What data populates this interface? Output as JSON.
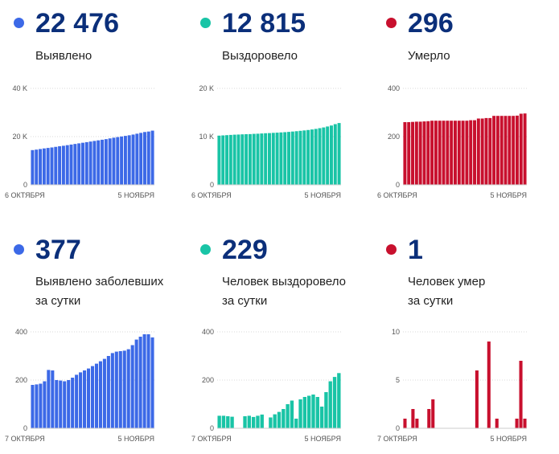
{
  "colors": {
    "blue": "#3c69e7",
    "teal": "#19c4a6",
    "red": "#c8102e",
    "number": "#0b2f7a"
  },
  "panels": [
    {
      "number": "22 476",
      "label_lines": [
        "Выявлено"
      ],
      "color": "#3c69e7",
      "chart_data": {
        "type": "bar",
        "yticks": [
          {
            "v": 0,
            "t": "0"
          },
          {
            "v": 20000,
            "t": "20 K"
          },
          {
            "v": 40000,
            "t": "40 K"
          }
        ],
        "ylim": [
          0,
          40000
        ],
        "x_start": "6 ОКТЯБРЯ",
        "x_end": "5 НОЯБРЯ",
        "values": [
          14400,
          14600,
          14850,
          15100,
          15300,
          15500,
          15750,
          16000,
          16200,
          16450,
          16700,
          16950,
          17200,
          17450,
          17700,
          17950,
          18200,
          18450,
          18700,
          18950,
          19250,
          19550,
          19800,
          20050,
          20300,
          20550,
          20850,
          21200,
          21550,
          21900,
          22100,
          22476
        ]
      }
    },
    {
      "number": "12 815",
      "label_lines": [
        "Выздоровело"
      ],
      "color": "#19c4a6",
      "chart_data": {
        "type": "bar",
        "yticks": [
          {
            "v": 0,
            "t": "0"
          },
          {
            "v": 10000,
            "t": "10 K"
          },
          {
            "v": 20000,
            "t": "20 K"
          }
        ],
        "ylim": [
          0,
          20000
        ],
        "x_start": "6 ОКТЯБРЯ",
        "x_end": "5 НОЯБРЯ",
        "values": [
          10200,
          10250,
          10300,
          10350,
          10400,
          10430,
          10470,
          10500,
          10520,
          10570,
          10600,
          10650,
          10700,
          10730,
          10780,
          10820,
          10870,
          10920,
          10980,
          11050,
          11120,
          11200,
          11280,
          11370,
          11480,
          11600,
          11750,
          11900,
          12100,
          12300,
          12586,
          12815
        ]
      }
    },
    {
      "number": "296",
      "label_lines": [
        "Умерло"
      ],
      "color": "#c8102e",
      "chart_data": {
        "type": "bar",
        "yticks": [
          {
            "v": 0,
            "t": "0"
          },
          {
            "v": 200,
            "t": "200"
          },
          {
            "v": 400,
            "t": "400"
          }
        ],
        "ylim": [
          0,
          400
        ],
        "x_start": "6 ОКТЯБРЯ",
        "x_end": "5 НОЯБРЯ",
        "values": [
          260,
          260,
          261,
          262,
          262,
          263,
          264,
          266,
          266,
          266,
          266,
          266,
          266,
          266,
          266,
          266,
          266,
          268,
          268,
          275,
          275,
          277,
          277,
          286,
          286,
          286,
          286,
          286,
          286,
          287,
          295,
          296
        ]
      }
    },
    {
      "number": "377",
      "label_lines": [
        "Выявлено заболевших",
        "за сутки"
      ],
      "color": "#3c69e7",
      "chart_data": {
        "type": "bar",
        "yticks": [
          {
            "v": 0,
            "t": "0"
          },
          {
            "v": 200,
            "t": "200"
          },
          {
            "v": 400,
            "t": "400"
          }
        ],
        "ylim": [
          0,
          400
        ],
        "x_start": "7 ОКТЯБРЯ",
        "x_end": "5 НОЯБРЯ",
        "values": [
          180,
          182,
          185,
          195,
          242,
          240,
          200,
          198,
          195,
          200,
          210,
          222,
          232,
          240,
          248,
          258,
          268,
          278,
          288,
          300,
          312,
          318,
          320,
          322,
          328,
          345,
          368,
          380,
          390,
          390,
          377
        ]
      }
    },
    {
      "number": "229",
      "label_lines": [
        "Человек выздоровело",
        "за сутки"
      ],
      "color": "#19c4a6",
      "chart_data": {
        "type": "bar",
        "yticks": [
          {
            "v": 0,
            "t": "0"
          },
          {
            "v": 200,
            "t": "200"
          },
          {
            "v": 400,
            "t": "400"
          }
        ],
        "ylim": [
          0,
          400
        ],
        "x_start": "7 ОКТЯБРЯ",
        "x_end": "5 НОЯБРЯ",
        "values": [
          52,
          52,
          50,
          48,
          0,
          0,
          50,
          52,
          47,
          52,
          57,
          0,
          45,
          58,
          68,
          80,
          100,
          115,
          40,
          120,
          130,
          135,
          140,
          130,
          90,
          150,
          195,
          213,
          229
        ]
      }
    },
    {
      "number": "1",
      "label_lines": [
        "Человек умер",
        "за сутки"
      ],
      "color": "#c8102e",
      "chart_data": {
        "type": "bar",
        "yticks": [
          {
            "v": 0,
            "t": "0"
          },
          {
            "v": 5,
            "t": "5"
          },
          {
            "v": 10,
            "t": "10"
          }
        ],
        "ylim": [
          0,
          10
        ],
        "x_start": "7 ОКТЯБРЯ",
        "x_end": "5 НОЯБРЯ",
        "values": [
          1,
          0,
          2,
          1,
          0,
          0,
          2,
          3,
          0,
          0,
          0,
          0,
          0,
          0,
          0,
          0,
          0,
          0,
          6,
          0,
          0,
          9,
          0,
          1,
          0,
          0,
          0,
          0,
          1,
          7,
          1
        ]
      }
    }
  ]
}
